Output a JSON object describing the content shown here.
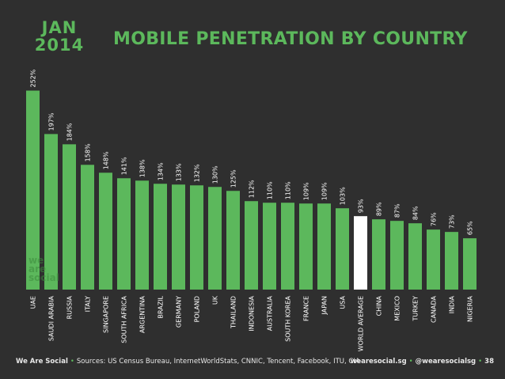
{
  "header": {
    "month": "JAN",
    "year": "2014",
    "title": "MOBILE PENETRATION BY COUNTRY"
  },
  "watermark": [
    "we",
    "are",
    "social"
  ],
  "footer": {
    "brand": "We Are Social",
    "sources": "Sources: US Census Bureau, InternetWorldStats, CNNIC, Tencent, Facebook, ITU, CIA",
    "site": "wearesocial.sg",
    "handle": "@wearesocialsg",
    "page": "38"
  },
  "colors": {
    "background": "#2f2f2f",
    "bar": "#5cb85c",
    "highlight_bar": "#ffffff",
    "text": "#ffffff"
  },
  "chart_data": {
    "type": "bar",
    "title": "MOBILE PENETRATION BY COUNTRY",
    "categories": [
      "UAE",
      "SAUDI ARABIA",
      "RUSSIA",
      "ITALY",
      "SINGAPORE",
      "SOUTH AFRICA",
      "ARGENTINA",
      "BRAZIL",
      "GERMANY",
      "POLAND",
      "UK",
      "THAILAND",
      "INDONESIA",
      "AUSTRALIA",
      "SOUTH KOREA",
      "FRANCE",
      "JAPAN",
      "USA",
      "WORLD AVERAGE",
      "CHINA",
      "MEXICO",
      "TURKEY",
      "CANADA",
      "INDIA",
      "NIGERIA"
    ],
    "values": [
      252,
      197,
      184,
      158,
      148,
      141,
      138,
      134,
      133,
      132,
      130,
      125,
      112,
      110,
      110,
      109,
      109,
      103,
      93,
      89,
      87,
      84,
      76,
      73,
      65
    ],
    "value_labels": [
      "252%",
      "197%",
      "184%",
      "158%",
      "148%",
      "141%",
      "138%",
      "134%",
      "133%",
      "132%",
      "130%",
      "125%",
      "112%",
      "110%",
      "110%",
      "109%",
      "109%",
      "103%",
      "93%",
      "89%",
      "87%",
      "84%",
      "76%",
      "73%",
      "65%"
    ],
    "highlight": "WORLD AVERAGE",
    "ylim": [
      0,
      260
    ],
    "grid": false,
    "legend": "none"
  }
}
